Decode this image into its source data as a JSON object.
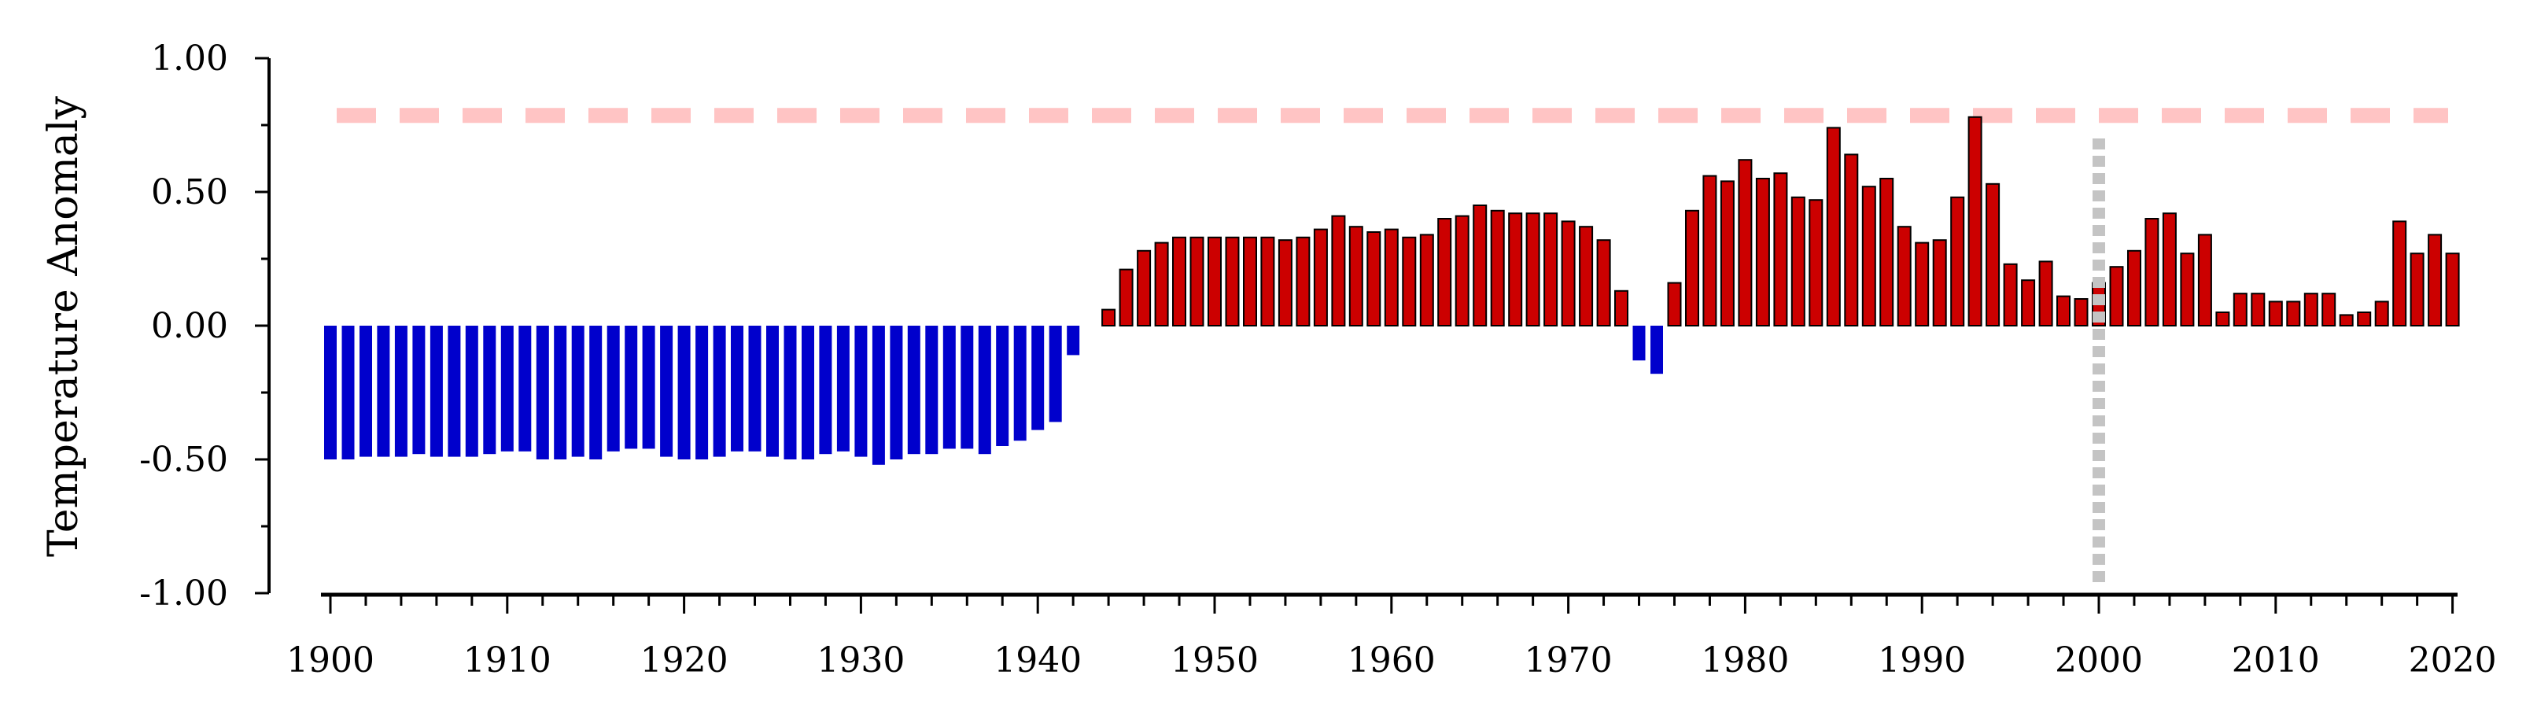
{
  "chart_data": {
    "type": "bar",
    "title": "",
    "xlabel": "",
    "ylabel": "Temperature Anomaly",
    "x": [
      1900,
      1901,
      1902,
      1903,
      1904,
      1905,
      1906,
      1907,
      1908,
      1909,
      1910,
      1911,
      1912,
      1913,
      1914,
      1915,
      1916,
      1917,
      1918,
      1919,
      1920,
      1921,
      1922,
      1923,
      1924,
      1925,
      1926,
      1927,
      1928,
      1929,
      1930,
      1931,
      1932,
      1933,
      1934,
      1935,
      1936,
      1937,
      1938,
      1939,
      1940,
      1941,
      1942,
      1943,
      1944,
      1945,
      1946,
      1947,
      1948,
      1949,
      1950,
      1951,
      1952,
      1953,
      1954,
      1955,
      1956,
      1957,
      1958,
      1959,
      1960,
      1961,
      1962,
      1963,
      1964,
      1965,
      1966,
      1967,
      1968,
      1969,
      1970,
      1971,
      1972,
      1973,
      1974,
      1975,
      1976,
      1977,
      1978,
      1979,
      1980,
      1981,
      1982,
      1983,
      1984,
      1985,
      1986,
      1987,
      1988,
      1989,
      1990,
      1991,
      1992,
      1993,
      1994,
      1995,
      1996,
      1997,
      1998,
      1999,
      2000,
      2001,
      2002,
      2003,
      2004,
      2005,
      2006,
      2007,
      2008,
      2009,
      2010,
      2011,
      2012,
      2013,
      2014,
      2015,
      2016,
      2017,
      2018,
      2019,
      2020
    ],
    "values": [
      -0.5,
      -0.5,
      -0.49,
      -0.49,
      -0.49,
      -0.48,
      -0.49,
      -0.49,
      -0.49,
      -0.48,
      -0.47,
      -0.47,
      -0.5,
      -0.5,
      -0.49,
      -0.5,
      -0.47,
      -0.46,
      -0.46,
      -0.49,
      -0.5,
      -0.5,
      -0.49,
      -0.47,
      -0.47,
      -0.49,
      -0.5,
      -0.5,
      -0.48,
      -0.47,
      -0.49,
      -0.52,
      -0.5,
      -0.48,
      -0.48,
      -0.46,
      -0.46,
      -0.48,
      -0.45,
      -0.43,
      -0.39,
      -0.36,
      -0.11,
      0.0,
      0.06,
      0.21,
      0.28,
      0.31,
      0.33,
      0.33,
      0.33,
      0.33,
      0.33,
      0.33,
      0.32,
      0.33,
      0.36,
      0.41,
      0.37,
      0.35,
      0.36,
      0.33,
      0.34,
      0.4,
      0.41,
      0.45,
      0.43,
      0.42,
      0.42,
      0.42,
      0.39,
      0.37,
      0.32,
      0.13,
      -0.13,
      -0.18,
      0.16,
      0.43,
      0.56,
      0.54,
      0.62,
      0.55,
      0.57,
      0.48,
      0.47,
      0.74,
      0.64,
      0.52,
      0.55,
      0.37,
      0.31,
      0.32,
      0.48,
      0.78,
      0.53,
      0.23,
      0.17,
      0.24,
      0.11,
      0.1,
      0.16,
      0.22,
      0.28,
      0.4,
      0.42,
      0.27,
      0.34,
      0.05,
      0.12,
      0.12,
      0.09,
      0.09,
      0.12,
      0.12,
      0.04,
      0.05,
      0.09,
      0.39,
      0.27,
      0.34,
      0.27
    ],
    "ylim": [
      -1.0,
      1.0
    ],
    "xlim": [
      1900,
      2020
    ],
    "yticks": [
      -1.0,
      -0.5,
      0.0,
      0.5,
      1.0
    ],
    "ytick_labels": [
      "-1.00",
      "-0.50",
      "0.00",
      "0.50",
      "1.00"
    ],
    "xticks": [
      1900,
      1910,
      1920,
      1930,
      1940,
      1950,
      1960,
      1970,
      1980,
      1990,
      2000,
      2010,
      2020
    ],
    "xtick_labels": [
      "1900",
      "1910",
      "1920",
      "1930",
      "1940",
      "1950",
      "1960",
      "1970",
      "1980",
      "1990",
      "2000",
      "2010",
      "2020"
    ],
    "reference_lines": {
      "horizontal": {
        "y": 0.78,
        "style": "dashed",
        "color": "#ffc4c4"
      },
      "vertical": {
        "x": 2000,
        "style": "dotted",
        "color": "#c4c4c4"
      }
    },
    "colors": {
      "positive": "#cc0000",
      "negative": "#0000cc",
      "positive_edge": "#000000"
    },
    "grid": false,
    "legend": "none"
  }
}
